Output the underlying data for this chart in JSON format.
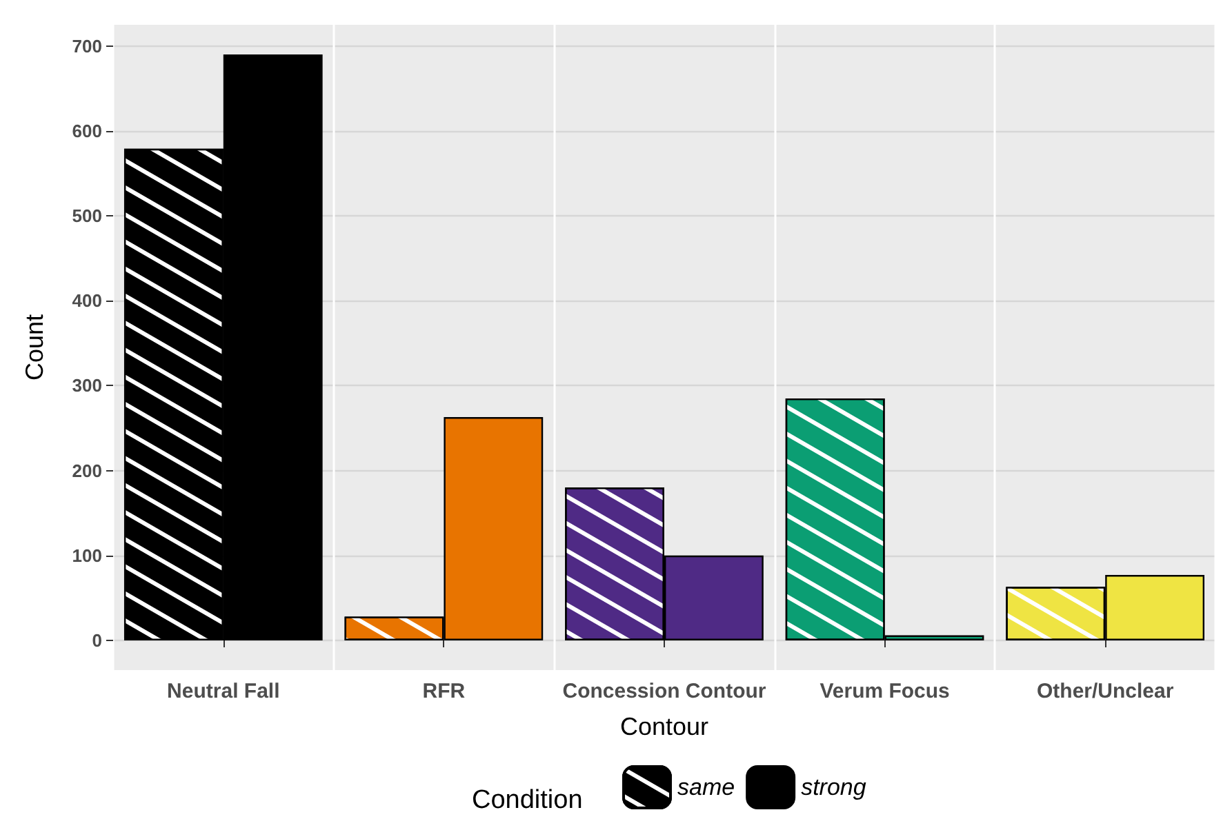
{
  "chart_data": {
    "type": "bar",
    "xlabel": "Contour",
    "ylabel": "Count",
    "legend_title": "Condition",
    "categories": [
      "Neutral Fall",
      "RFR",
      "Concession Contour",
      "Verum Focus",
      "Other/Unclear"
    ],
    "series": [
      {
        "name": "same",
        "color": "#000000",
        "colors": [
          "#000000",
          "#e87400",
          "#4f2a85",
          "#0b9e73",
          "#efe443"
        ],
        "values": [
          579,
          28,
          180,
          285,
          63
        ]
      },
      {
        "name": "strong",
        "color": "#000000",
        "colors": [
          "#000000",
          "#e87400",
          "#4f2a85",
          "#0b9e73",
          "#efe443"
        ],
        "values": [
          690,
          263,
          100,
          6,
          77
        ]
      }
    ],
    "ylim": [
      -35,
      725
    ],
    "yticks": [
      0,
      100,
      200,
      300,
      400,
      500,
      600,
      700
    ],
    "grid": true,
    "legend": "bottom"
  }
}
